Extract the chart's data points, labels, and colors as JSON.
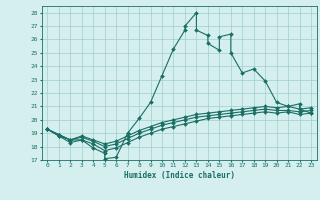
{
  "title": "",
  "xlabel": "Humidex (Indice chaleur)",
  "bg_color": "#d4efee",
  "line_color": "#1a6e65",
  "grid_color": "#9ecece",
  "xlim": [
    -0.5,
    23.5
  ],
  "ylim": [
    17,
    28.5
  ],
  "yticks": [
    17,
    18,
    19,
    20,
    21,
    22,
    23,
    24,
    25,
    26,
    27,
    28
  ],
  "xticks": [
    0,
    1,
    2,
    3,
    4,
    5,
    6,
    7,
    8,
    9,
    10,
    11,
    12,
    13,
    14,
    15,
    16,
    17,
    18,
    19,
    20,
    21,
    22,
    23
  ],
  "series1_x": [
    0,
    1,
    2,
    3,
    4,
    5,
    5,
    6,
    7,
    8,
    9,
    10,
    11,
    12,
    12,
    13,
    13,
    14,
    14,
    15,
    15,
    16,
    16,
    17,
    18,
    19,
    20,
    21,
    22,
    22,
    23
  ],
  "series1_y": [
    19.3,
    18.8,
    18.5,
    18.5,
    17.9,
    17.5,
    17.1,
    17.2,
    19.0,
    20.1,
    21.3,
    23.3,
    25.3,
    26.7,
    27.0,
    28.0,
    26.7,
    26.3,
    25.7,
    25.2,
    26.2,
    26.4,
    25.0,
    23.5,
    23.8,
    22.9,
    21.3,
    21.0,
    21.2,
    20.8,
    20.5
  ],
  "series2_x": [
    0,
    1,
    2,
    3,
    4,
    5,
    6,
    7,
    8,
    9,
    10,
    11,
    12,
    13,
    14,
    15,
    16,
    17,
    18,
    19,
    20,
    21,
    22,
    23
  ],
  "series2_y": [
    19.3,
    18.9,
    18.5,
    18.8,
    18.5,
    18.2,
    18.4,
    18.8,
    19.2,
    19.5,
    19.8,
    20.0,
    20.2,
    20.4,
    20.5,
    20.6,
    20.7,
    20.8,
    20.9,
    21.0,
    20.9,
    21.0,
    20.8,
    20.9
  ],
  "series3_x": [
    0,
    1,
    2,
    3,
    4,
    5,
    6,
    7,
    8,
    9,
    10,
    11,
    12,
    13,
    14,
    15,
    16,
    17,
    18,
    19,
    20,
    21,
    22,
    23
  ],
  "series3_y": [
    19.3,
    18.9,
    18.5,
    18.7,
    18.4,
    18.0,
    18.2,
    18.6,
    19.0,
    19.3,
    19.6,
    19.8,
    20.0,
    20.2,
    20.3,
    20.4,
    20.5,
    20.6,
    20.7,
    20.8,
    20.7,
    20.7,
    20.6,
    20.7
  ],
  "series4_x": [
    0,
    1,
    2,
    3,
    4,
    5,
    6,
    7,
    8,
    9,
    10,
    11,
    12,
    13,
    14,
    15,
    16,
    17,
    18,
    19,
    20,
    21,
    22,
    23
  ],
  "series4_y": [
    19.3,
    18.8,
    18.3,
    18.5,
    18.2,
    17.7,
    17.9,
    18.3,
    18.7,
    19.0,
    19.3,
    19.5,
    19.7,
    19.9,
    20.1,
    20.2,
    20.3,
    20.4,
    20.5,
    20.6,
    20.5,
    20.6,
    20.4,
    20.5
  ]
}
